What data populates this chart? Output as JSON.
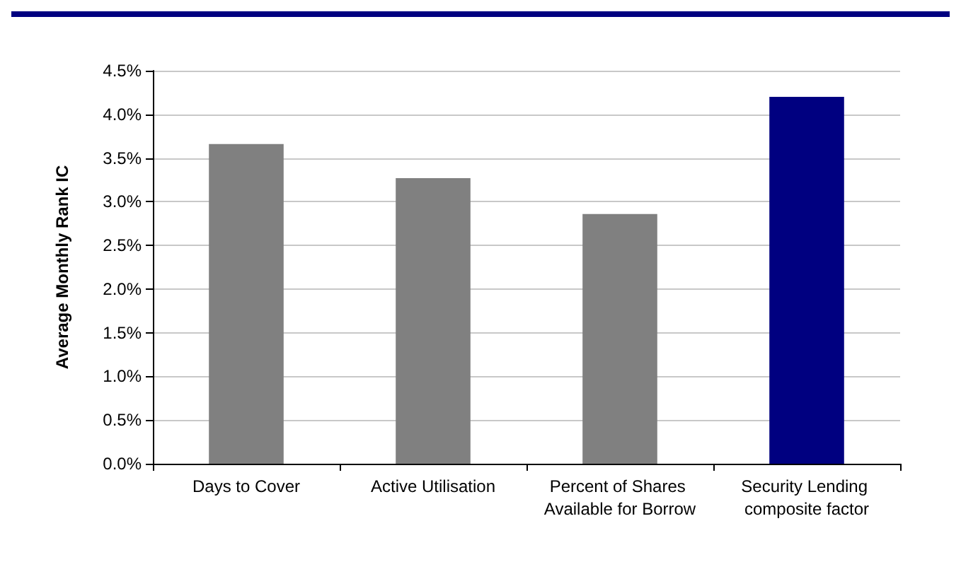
{
  "chart_data": {
    "type": "bar",
    "ylabel": "Average Monthly Rank IC",
    "categories": [
      "Days to Cover",
      "Active Utilisation",
      "Percent of Shares Available for Borrow",
      "Security Lending composite factor"
    ],
    "values": [
      3.66,
      3.27,
      2.86,
      4.2
    ],
    "colors": [
      "#808080",
      "#808080",
      "#808080",
      "#000080"
    ],
    "ylim": [
      0,
      4.5
    ],
    "yticks": [
      {
        "value": 0,
        "label": "0.0%"
      },
      {
        "value": 0.5,
        "label": "0.5%"
      },
      {
        "value": 1,
        "label": "1.0%"
      },
      {
        "value": 1.5,
        "label": "1.5%"
      },
      {
        "value": 2,
        "label": "2.0%"
      },
      {
        "value": 2.5,
        "label": "2.5%"
      },
      {
        "value": 3,
        "label": "3.0%"
      },
      {
        "value": 3.5,
        "label": "3.5%"
      },
      {
        "value": 4,
        "label": "4.0%"
      },
      {
        "value": 4.5,
        "label": "4.5%"
      }
    ],
    "grid": "y"
  }
}
